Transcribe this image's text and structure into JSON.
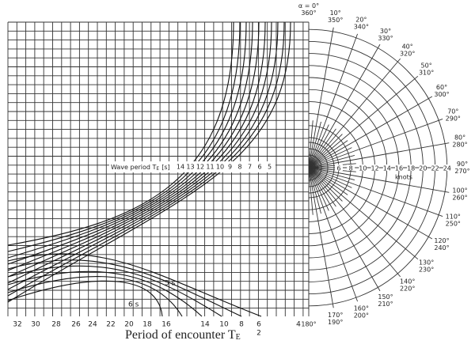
{
  "wave_period": {
    "label": "Wave period T",
    "sub": "E",
    "unit": "[s]",
    "values": [
      "14",
      "13",
      "12",
      "11",
      "10",
      "9",
      "8",
      "7",
      "6",
      "5"
    ]
  },
  "curve_labels": [
    "5 s",
    "6 s"
  ],
  "angles": [
    [
      "α = 0°",
      "360°"
    ],
    [
      "10°",
      "350°"
    ],
    [
      "20°",
      "340°"
    ],
    [
      "30°",
      "330°"
    ],
    [
      "40°",
      "320°"
    ],
    [
      "50°",
      "310°"
    ],
    [
      "60°",
      "300°"
    ],
    [
      "70°",
      "290°"
    ],
    [
      "80°",
      "280°"
    ],
    [
      "90°",
      "270°"
    ],
    [
      "100°",
      "260°"
    ],
    [
      "110°",
      "250°"
    ],
    [
      "120°",
      "240°"
    ],
    [
      "130°",
      "230°"
    ],
    [
      "140°",
      "220°"
    ],
    [
      "150°",
      "210°"
    ],
    [
      "160°",
      "200°"
    ],
    [
      "170°",
      "190°"
    ],
    [
      "180°"
    ]
  ],
  "speeds": [
    "6",
    "8",
    "10",
    "12",
    "14",
    "16",
    "18",
    "20",
    "22",
    "24"
  ],
  "speed_unit": "knots",
  "x_labels": [
    "32",
    "30",
    "28",
    "26",
    "24",
    "22",
    "20",
    "18",
    "16",
    "14",
    "10",
    "8",
    "6",
    "4"
  ],
  "extra_label": "2",
  "axis_title": {
    "text": "Period of encounter T",
    "sub": "E"
  }
}
